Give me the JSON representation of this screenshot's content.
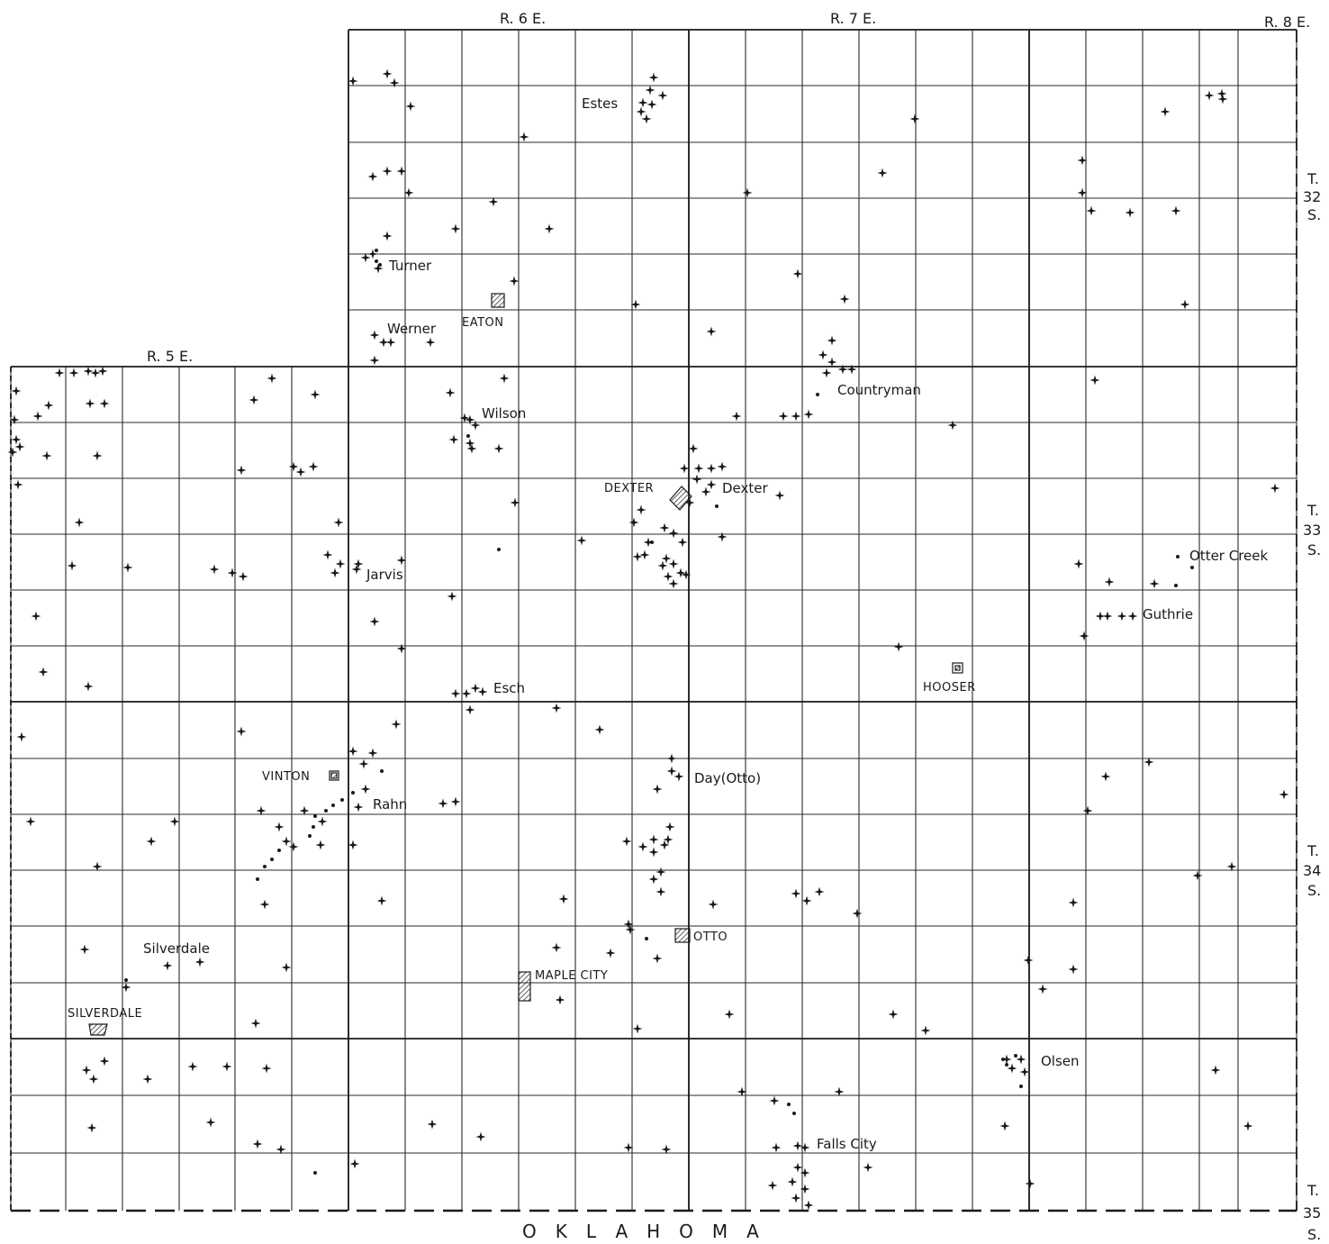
{
  "ranges": [
    "R. 5 E.",
    "R. 6 E.",
    "R. 7 E.",
    "R. 8 E."
  ],
  "townships": [
    {
      "line1": "T.",
      "line2": "32",
      "line3": "S."
    },
    {
      "line1": "T.",
      "line2": "33",
      "line3": "S."
    },
    {
      "line1": "T.",
      "line2": "34",
      "line3": "S."
    },
    {
      "line1": "T.",
      "line2": "35",
      "line3": "S."
    }
  ],
  "state_border_label": "OKLAHOMA",
  "oil_gas_fields": [
    "Estes",
    "Turner",
    "Werner",
    "Wilson",
    "Countryman",
    "Dexter",
    "Jarvis",
    "Otter Creek",
    "Guthrie",
    "Esch",
    "Day (Otto)",
    "Rahn",
    "Silverdale",
    "Olsen",
    "Falls City"
  ],
  "towns": [
    "EATON",
    "DEXTER",
    "HOOSER",
    "VINTON",
    "OTTO",
    "MAPLE CITY",
    "SILVERDALE"
  ],
  "colors": {
    "ink": "#1a1a1a",
    "paper": "#ffffff",
    "town_hatch": "#1a1a1a"
  },
  "symbols": {
    "well": "four-point-star",
    "small_well": "dot"
  }
}
